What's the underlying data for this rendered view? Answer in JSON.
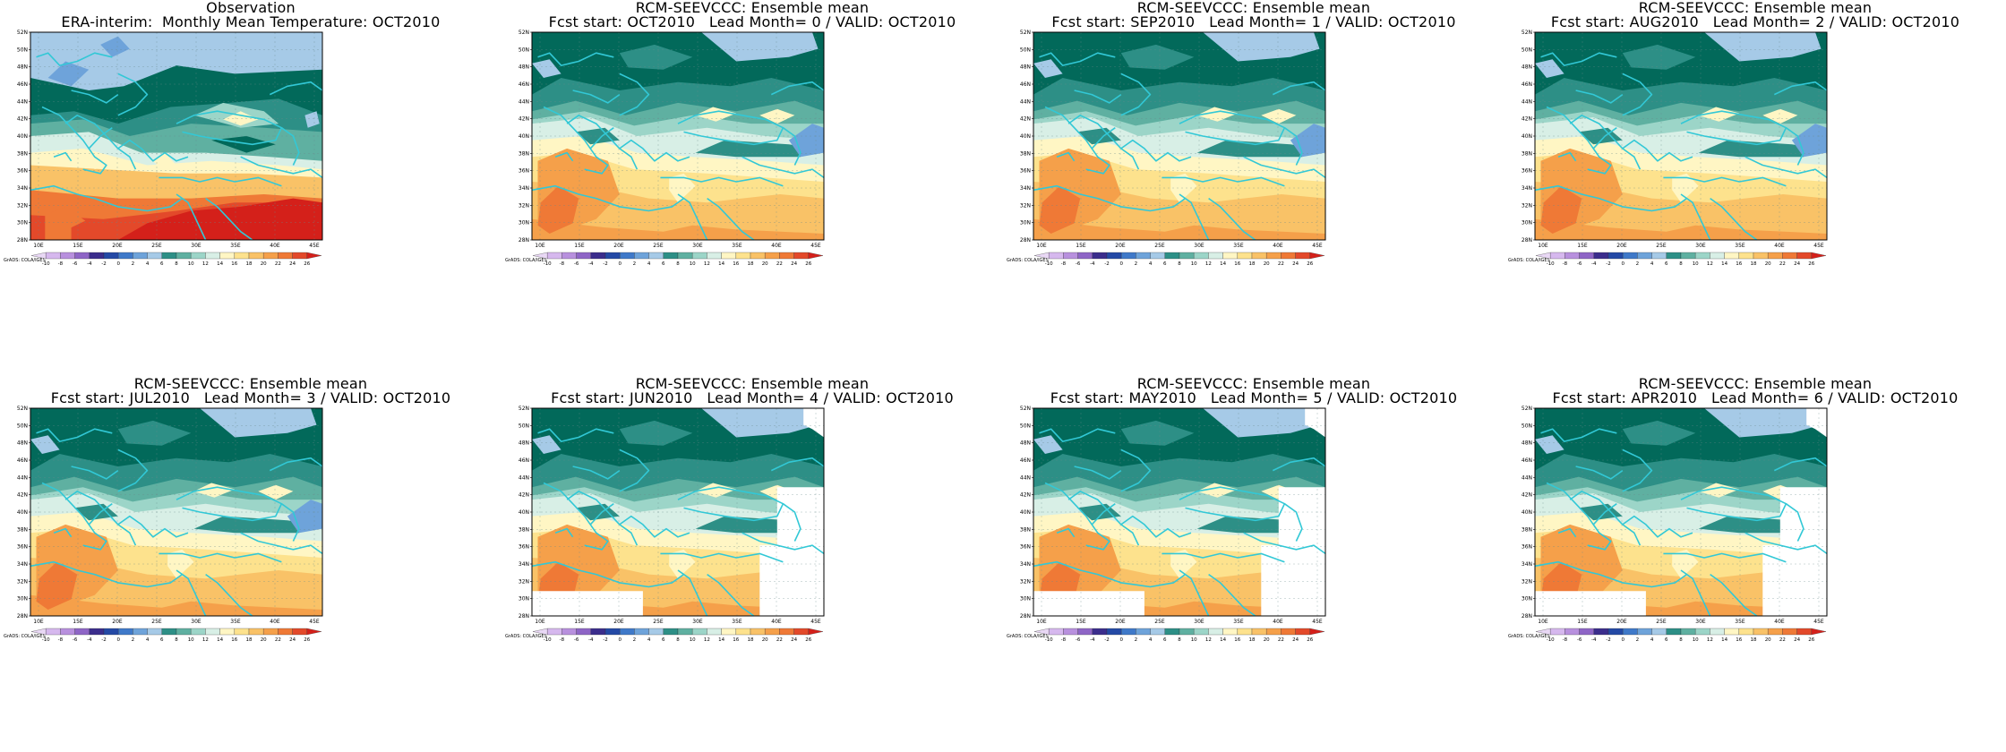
{
  "figure": {
    "panels": [
      {
        "title1": "Observation",
        "title2": "ERA-interim:  Monthly Mean Temperature: OCT2010",
        "kind": "obs",
        "missing_data": false
      },
      {
        "title1": "RCM-SEEVCCC: Ensemble mean",
        "title2": "Fcst start: OCT2010   Lead Month= 0 / VALID: OCT2010",
        "kind": "fc",
        "missing_data": false
      },
      {
        "title1": "RCM-SEEVCCC: Ensemble mean",
        "title2": "Fcst start: SEP2010   Lead Month= 1 / VALID: OCT2010",
        "kind": "fc",
        "missing_data": false
      },
      {
        "title1": "RCM-SEEVCCC: Ensemble mean",
        "title2": "Fcst start: AUG2010   Lead Month= 2 / VALID: OCT2010",
        "kind": "fc",
        "missing_data": false
      },
      {
        "title1": "RCM-SEEVCCC: Ensemble mean",
        "title2": "Fcst start: JUL2010   Lead Month= 3 / VALID: OCT2010",
        "kind": "fc",
        "missing_data": false
      },
      {
        "title1": "RCM-SEEVCCC: Ensemble mean",
        "title2": "Fcst start: JUN2010   Lead Month= 4 / VALID: OCT2010",
        "kind": "fc",
        "missing_data": true
      },
      {
        "title1": "RCM-SEEVCCC: Ensemble mean",
        "title2": "Fcst start: MAY2010   Lead Month= 5 / VALID: OCT2010",
        "kind": "fc",
        "missing_data": true
      },
      {
        "title1": "RCM-SEEVCCC: Ensemble mean",
        "title2": "Fcst start: APR2010   Lead Month= 6 / VALID: OCT2010",
        "kind": "fc",
        "missing_data": true
      }
    ],
    "lat_labels": [
      "52N",
      "50N",
      "48N",
      "46N",
      "44N",
      "42N",
      "40N",
      "38N",
      "36N",
      "34N",
      "32N",
      "30N",
      "28N"
    ],
    "lon_labels": [
      "10E",
      "15E",
      "20E",
      "25E",
      "30E",
      "35E",
      "40E",
      "45E"
    ],
    "credit": "GrADS: COLA/IGES",
    "colorbar": {
      "labels": [
        "-10",
        "-8",
        "-6",
        "-4",
        "-2",
        "0",
        "2",
        "4",
        "6",
        "8",
        "10",
        "12",
        "14",
        "16",
        "18",
        "20",
        "22",
        "24",
        "26"
      ],
      "colors": [
        "#e9d8f5",
        "#d6b8ee",
        "#b890de",
        "#8e65c6",
        "#3b2d8c",
        "#2449a5",
        "#3f79c9",
        "#6ea3da",
        "#a6cae7",
        "#2d8f86",
        "#5fb0a1",
        "#9cd5c8",
        "#d8efe6",
        "#fff6c4",
        "#fde28d",
        "#f9c267",
        "#f5a04a",
        "#ef7936",
        "#e3492a",
        "#d4201a"
      ]
    },
    "map_colors": {
      "c_m10": "#6ea3da",
      "c_m5": "#a6cae7",
      "c_0": "#02695a",
      "c_5": "#2d8f86",
      "c_10": "#5fb0a1",
      "c_12": "#9cd5c8",
      "c_14": "#d8efe6",
      "c_16": "#fff6c4",
      "c_18": "#fde28d",
      "c_20": "#f9c267",
      "c_22": "#f5a04a",
      "c_24": "#ef7936",
      "c_26": "#e3492a",
      "c_28": "#d4201a",
      "coast": "#32c8d6",
      "missing": "#ffffff"
    }
  }
}
